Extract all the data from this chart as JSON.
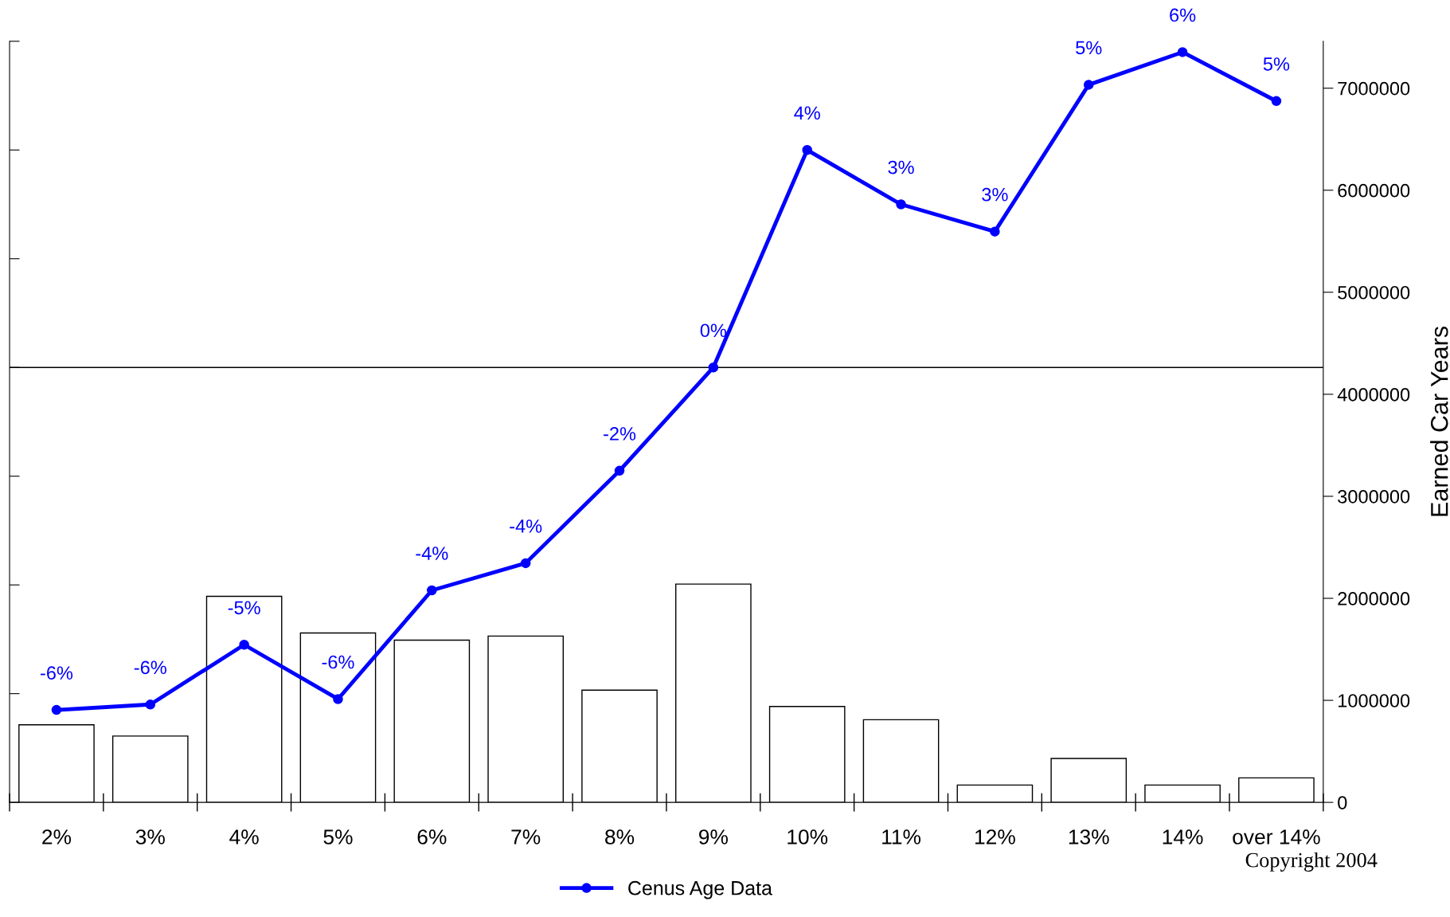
{
  "chart_data": {
    "type": "bar",
    "categories": [
      "2%",
      "3%",
      "4%",
      "5%",
      "6%",
      "7%",
      "8%",
      "9%",
      "10%",
      "11%",
      "12%",
      "13%",
      "14%",
      "over 14%"
    ],
    "y2label": "Earned Car Years",
    "series": [
      {
        "axis": "y2",
        "color": "#ffffff",
        "values": [
          760000,
          650000,
          2020000,
          1660000,
          1590000,
          1630000,
          1100000,
          2140000,
          940000,
          810000,
          170000,
          430000,
          170000,
          240000
        ]
      },
      {
        "type": "line",
        "axis": "y",
        "name": "Cenus Age Data",
        "color": "#0000ff",
        "marker": "circle",
        "values": [
          -6.3,
          -6.2,
          -5.1,
          -6.1,
          -4.1,
          -3.6,
          -1.9,
          0,
          4.0,
          3.0,
          2.5,
          5.2,
          5.8,
          4.9
        ],
        "value_labels": [
          "-6%",
          "-6%",
          "-5%",
          "-6%",
          "-4%",
          "-4%",
          "-2%",
          "0%",
          "4%",
          "3%",
          "3%",
          "5%",
          "6%",
          "5%"
        ]
      }
    ],
    "ylim": [
      -8,
      6
    ],
    "yticks": [
      {
        "value": -8,
        "label": null
      },
      {
        "value": -6,
        "label": null
      },
      {
        "value": -4,
        "label": null
      },
      {
        "value": -2,
        "label": null
      },
      {
        "value": 0,
        "label": null
      },
      {
        "value": 2,
        "label": null
      },
      {
        "value": 4,
        "label": null
      },
      {
        "value": 6,
        "label": null
      }
    ],
    "y2lim": [
      0,
      7460000
    ],
    "y2ticks": [
      0,
      1000000,
      2000000,
      3000000,
      4000000,
      5000000,
      6000000,
      7000000
    ],
    "ref_lines": [
      {
        "axis": "y",
        "value": 0,
        "color": "#000000"
      }
    ],
    "legend": "bottom",
    "grid": false,
    "annotations": [
      "Copyright 2004"
    ]
  }
}
